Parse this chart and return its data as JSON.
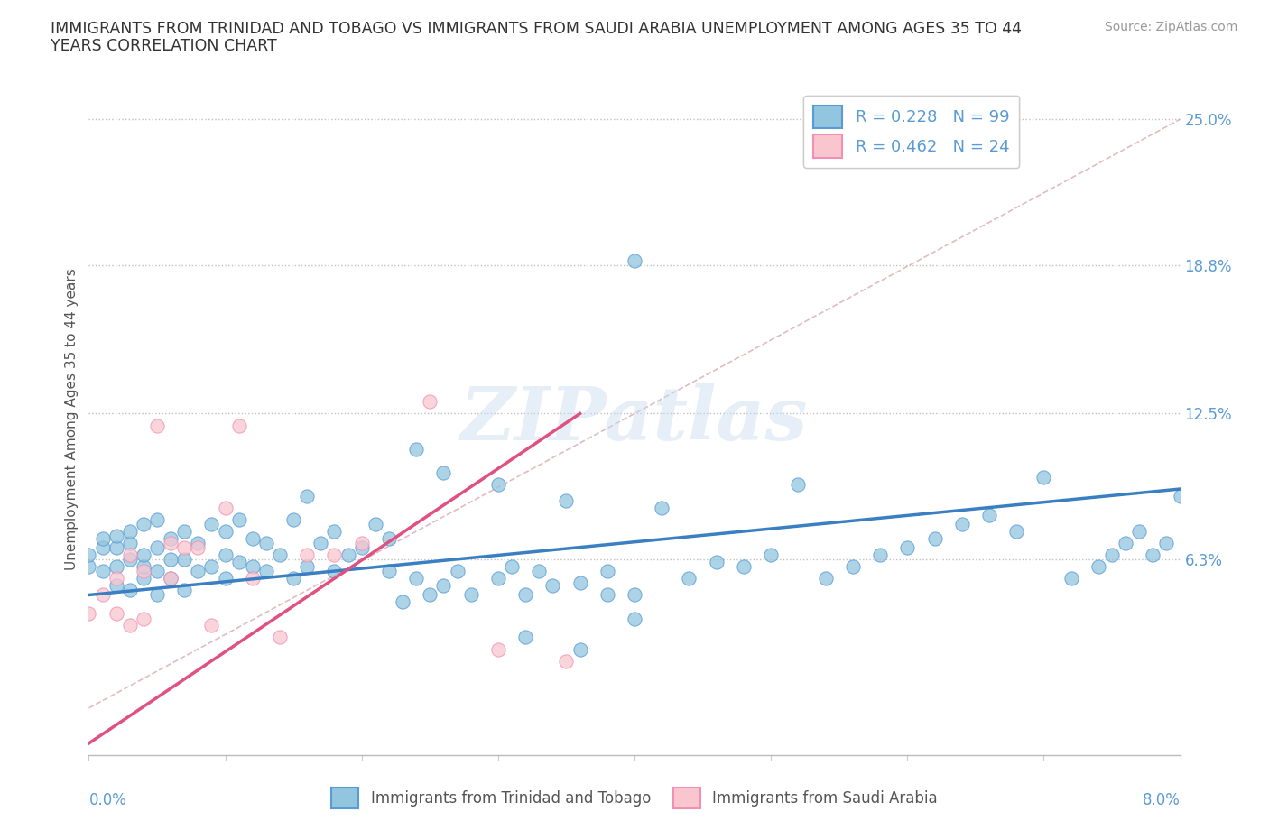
{
  "title": "IMMIGRANTS FROM TRINIDAD AND TOBAGO VS IMMIGRANTS FROM SAUDI ARABIA UNEMPLOYMENT AMONG AGES 35 TO 44\nYEARS CORRELATION CHART",
  "source_text": "Source: ZipAtlas.com",
  "ylabel": "Unemployment Among Ages 35 to 44 years",
  "yticks_labels": [
    "6.3%",
    "12.5%",
    "18.8%",
    "25.0%"
  ],
  "yticks_values": [
    0.063,
    0.125,
    0.188,
    0.25
  ],
  "xmin": 0.0,
  "xmax": 0.08,
  "ymin": -0.02,
  "ymax": 0.265,
  "color_blue": "#92c5de",
  "color_blue_edge": "#5b9bd5",
  "color_pink": "#f9c6d0",
  "color_pink_edge": "#f48fb1",
  "color_trend_blue": "#3a7fc1",
  "color_trend_pink": "#e05080",
  "color_diagonal": "#d4a0a8",
  "watermark": "ZIPatlas",
  "dotted_ylines": [
    0.063,
    0.125,
    0.188,
    0.25
  ],
  "trin_x": [
    0.0,
    0.0,
    0.001,
    0.001,
    0.001,
    0.002,
    0.002,
    0.002,
    0.002,
    0.003,
    0.003,
    0.003,
    0.003,
    0.004,
    0.004,
    0.004,
    0.004,
    0.005,
    0.005,
    0.005,
    0.005,
    0.006,
    0.006,
    0.006,
    0.007,
    0.007,
    0.007,
    0.008,
    0.008,
    0.009,
    0.009,
    0.01,
    0.01,
    0.01,
    0.011,
    0.011,
    0.012,
    0.012,
    0.013,
    0.013,
    0.014,
    0.015,
    0.015,
    0.016,
    0.016,
    0.017,
    0.018,
    0.018,
    0.019,
    0.02,
    0.021,
    0.022,
    0.022,
    0.023,
    0.024,
    0.025,
    0.026,
    0.027,
    0.028,
    0.03,
    0.031,
    0.032,
    0.033,
    0.034,
    0.036,
    0.038,
    0.04,
    0.042,
    0.044,
    0.046,
    0.048,
    0.05,
    0.052,
    0.054,
    0.056,
    0.058,
    0.06,
    0.062,
    0.064,
    0.066,
    0.068,
    0.07,
    0.072,
    0.074,
    0.075,
    0.076,
    0.077,
    0.078,
    0.079,
    0.08,
    0.024,
    0.026,
    0.03,
    0.035,
    0.038,
    0.04,
    0.04,
    0.036,
    0.032
  ],
  "trin_y": [
    0.06,
    0.065,
    0.058,
    0.068,
    0.072,
    0.052,
    0.06,
    0.068,
    0.073,
    0.05,
    0.063,
    0.07,
    0.075,
    0.055,
    0.06,
    0.065,
    0.078,
    0.048,
    0.058,
    0.068,
    0.08,
    0.055,
    0.063,
    0.072,
    0.05,
    0.063,
    0.075,
    0.058,
    0.07,
    0.06,
    0.078,
    0.055,
    0.065,
    0.075,
    0.062,
    0.08,
    0.06,
    0.072,
    0.058,
    0.07,
    0.065,
    0.055,
    0.08,
    0.06,
    0.09,
    0.07,
    0.058,
    0.075,
    0.065,
    0.068,
    0.078,
    0.058,
    0.072,
    0.045,
    0.055,
    0.048,
    0.052,
    0.058,
    0.048,
    0.055,
    0.06,
    0.048,
    0.058,
    0.052,
    0.053,
    0.058,
    0.19,
    0.085,
    0.055,
    0.062,
    0.06,
    0.065,
    0.095,
    0.055,
    0.06,
    0.065,
    0.068,
    0.072,
    0.078,
    0.082,
    0.075,
    0.098,
    0.055,
    0.06,
    0.065,
    0.07,
    0.075,
    0.065,
    0.07,
    0.09,
    0.11,
    0.1,
    0.095,
    0.088,
    0.048,
    0.048,
    0.038,
    0.025,
    0.03
  ],
  "saudi_x": [
    0.0,
    0.001,
    0.002,
    0.002,
    0.003,
    0.003,
    0.004,
    0.004,
    0.005,
    0.006,
    0.006,
    0.007,
    0.008,
    0.009,
    0.01,
    0.011,
    0.012,
    0.014,
    0.016,
    0.018,
    0.02,
    0.025,
    0.03,
    0.035
  ],
  "saudi_y": [
    0.04,
    0.048,
    0.055,
    0.04,
    0.065,
    0.035,
    0.058,
    0.038,
    0.12,
    0.055,
    0.07,
    0.068,
    0.068,
    0.035,
    0.085,
    0.12,
    0.055,
    0.03,
    0.065,
    0.065,
    0.07,
    0.13,
    0.025,
    0.02
  ],
  "trin_trend_x0": 0.0,
  "trin_trend_x1": 0.08,
  "trin_trend_y0": 0.048,
  "trin_trend_y1": 0.093,
  "saudi_trend_x0": 0.0,
  "saudi_trend_x1": 0.036,
  "saudi_trend_y0": -0.015,
  "saudi_trend_y1": 0.125
}
